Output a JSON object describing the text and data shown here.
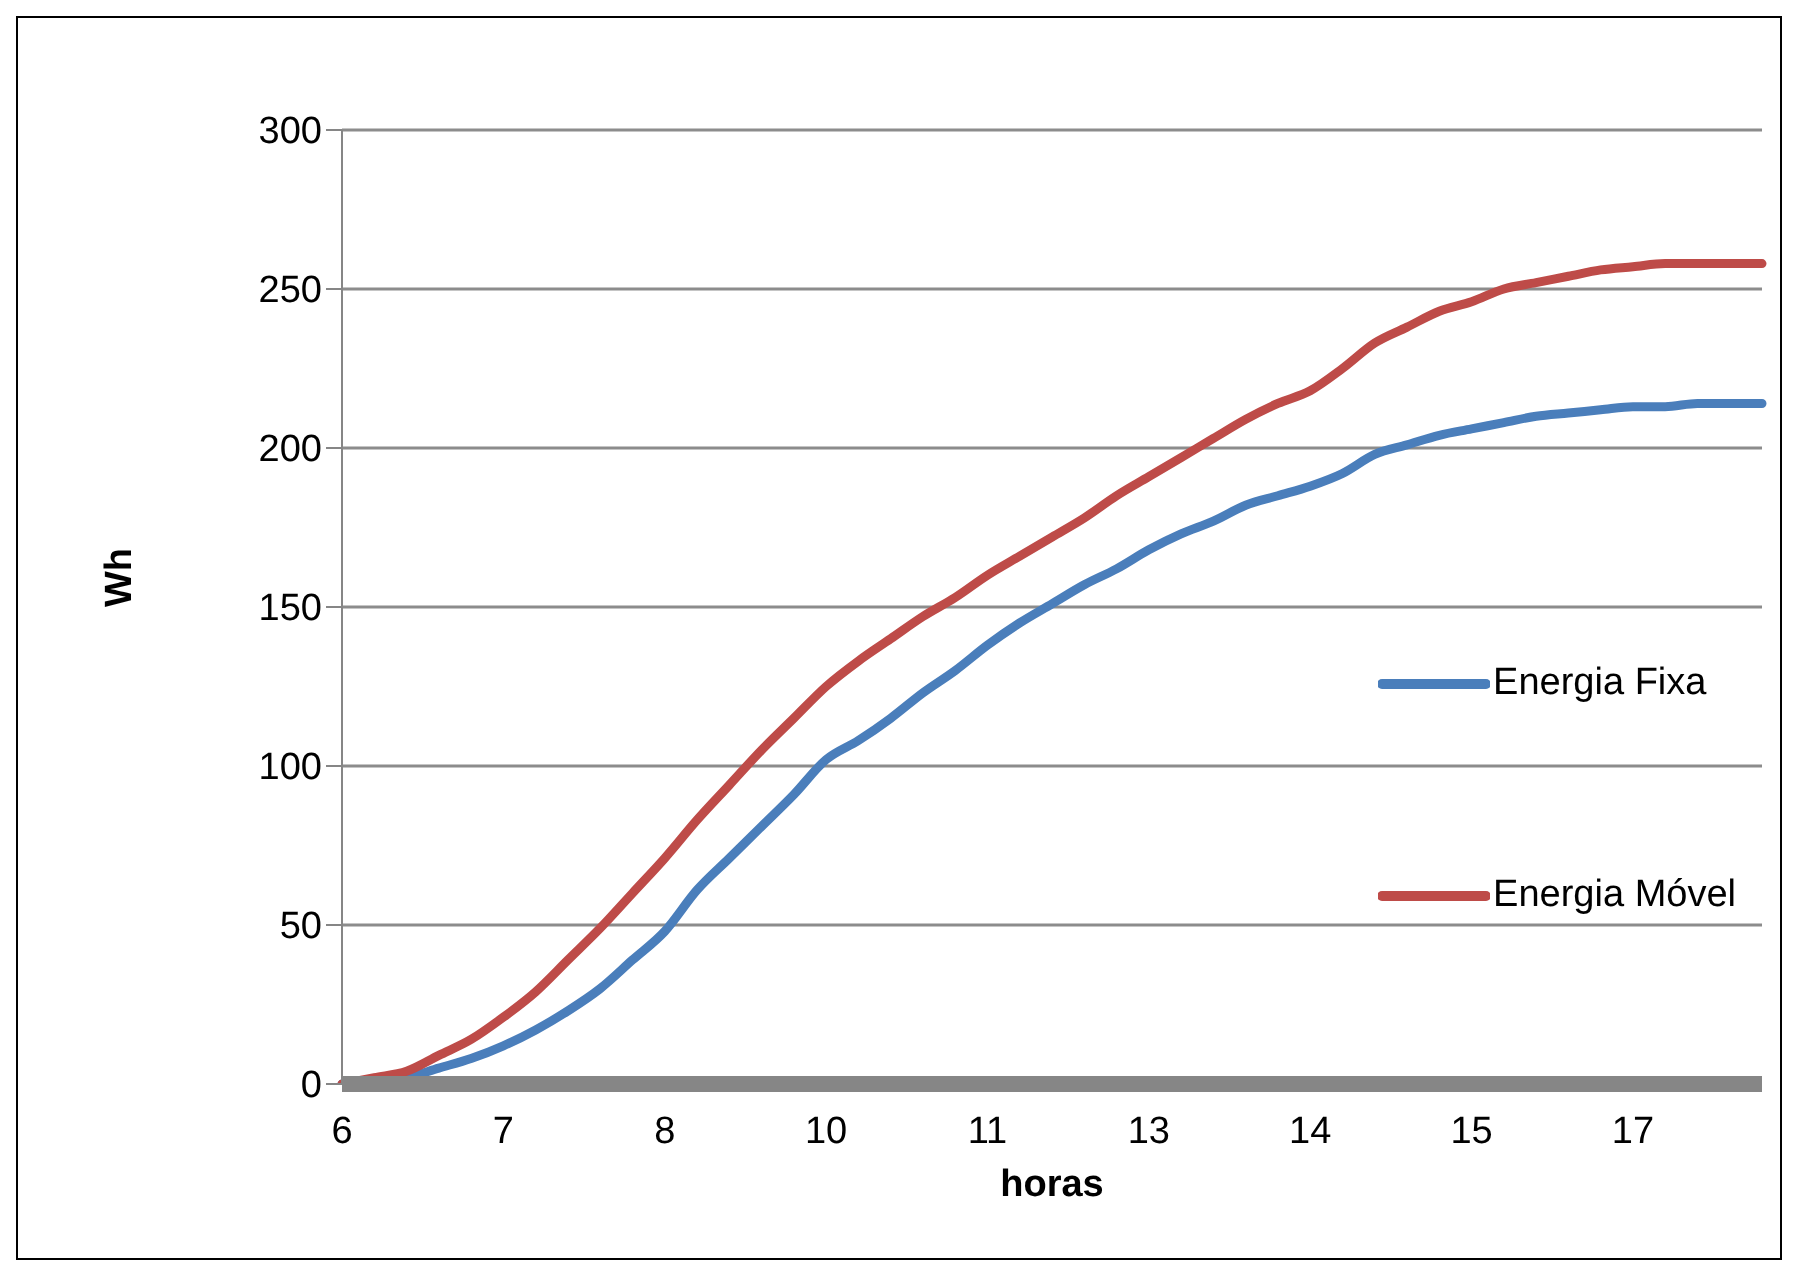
{
  "chart_data": {
    "type": "line",
    "xlabel": "horas",
    "ylabel": "Wh",
    "categories": [
      "6",
      null,
      null,
      null,
      null,
      "7",
      null,
      null,
      null,
      null,
      "8",
      null,
      null,
      null,
      null,
      "10",
      null,
      null,
      null,
      null,
      "11",
      null,
      null,
      null,
      null,
      "13",
      null,
      null,
      null,
      null,
      "14",
      null,
      null,
      null,
      null,
      "15",
      null,
      null,
      null,
      null,
      "17",
      null,
      null,
      null,
      null
    ],
    "series": [
      {
        "name": "Energia Fixa",
        "color": "#4a7ebb",
        "values": [
          0,
          1,
          2,
          5,
          8,
          12,
          17,
          23,
          30,
          39,
          48,
          61,
          71,
          81,
          91,
          102,
          108,
          115,
          123,
          130,
          138,
          145,
          151,
          157,
          162,
          168,
          173,
          177,
          182,
          185,
          188,
          192,
          198,
          201,
          204,
          206,
          208,
          210,
          211,
          212,
          213,
          213,
          214,
          214,
          214
        ]
      },
      {
        "name": "Energia Móvel",
        "color": "#be4b48",
        "values": [
          0,
          2,
          4,
          9,
          14,
          21,
          29,
          39,
          49,
          60,
          71,
          83,
          94,
          105,
          115,
          125,
          133,
          140,
          147,
          153,
          160,
          166,
          172,
          178,
          185,
          191,
          197,
          203,
          209,
          214,
          218,
          225,
          233,
          238,
          243,
          246,
          250,
          252,
          254,
          256,
          257,
          258,
          258,
          258,
          258
        ]
      }
    ],
    "ylim": [
      0,
      300
    ],
    "yticks": [
      0,
      50,
      100,
      150,
      200,
      250,
      300
    ],
    "grid": "y",
    "legend": "right",
    "marker": "none",
    "line_style": "solid"
  }
}
